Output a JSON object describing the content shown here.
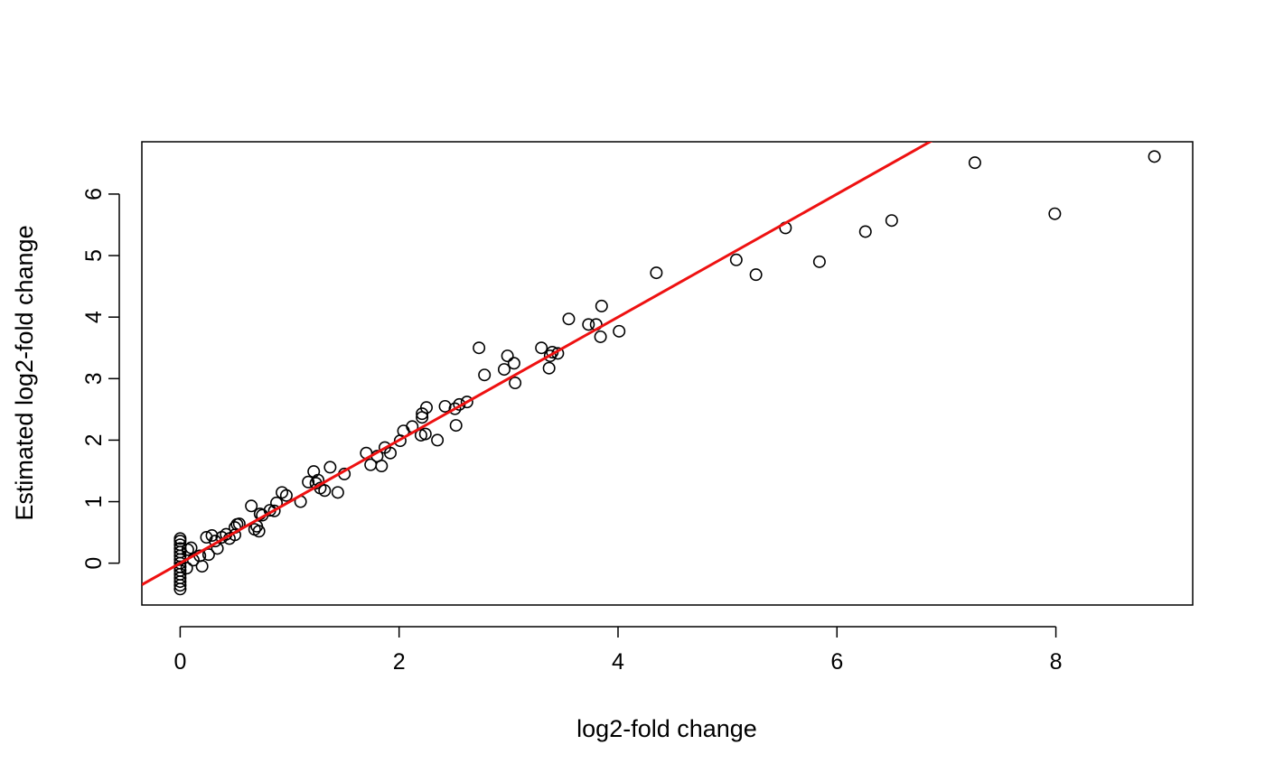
{
  "chart_data": {
    "type": "scatter",
    "title": "",
    "xlabel": "log2-fold change",
    "ylabel": "Estimated log2-fold change",
    "xlim": [
      -0.35,
      9.25
    ],
    "ylim": [
      -0.68,
      6.85
    ],
    "x_ticks": [
      0,
      2,
      4,
      6,
      8
    ],
    "y_ticks": [
      0,
      1,
      2,
      3,
      4,
      5,
      6
    ],
    "x_tick_labels": [
      "0",
      "2",
      "4",
      "6",
      "8"
    ],
    "y_tick_labels": [
      "0",
      "1",
      "2",
      "3",
      "4",
      "5",
      "6"
    ],
    "grid": false,
    "legend": "none",
    "colors": {
      "points": "#000000",
      "reference_line": "#ee1111"
    },
    "reference_line": {
      "type": "identity",
      "intercept": 0,
      "slope": 1
    },
    "points": [
      [
        0,
        -0.42
      ],
      [
        0,
        -0.36
      ],
      [
        0,
        -0.3
      ],
      [
        0,
        -0.24
      ],
      [
        0,
        -0.18
      ],
      [
        0,
        -0.12
      ],
      [
        0,
        -0.06
      ],
      [
        0,
        0.0
      ],
      [
        0,
        0.06
      ],
      [
        0,
        0.12
      ],
      [
        0,
        0.18
      ],
      [
        0,
        0.24
      ],
      [
        0,
        0.3
      ],
      [
        0,
        0.36
      ],
      [
        0,
        0.4
      ],
      [
        0.06,
        -0.08
      ],
      [
        0.07,
        0.22
      ],
      [
        0.1,
        0.25
      ],
      [
        0.12,
        0.05
      ],
      [
        0.18,
        0.12
      ],
      [
        0.2,
        -0.05
      ],
      [
        0.24,
        0.42
      ],
      [
        0.26,
        0.14
      ],
      [
        0.29,
        0.45
      ],
      [
        0.32,
        0.36
      ],
      [
        0.34,
        0.24
      ],
      [
        0.38,
        0.42
      ],
      [
        0.42,
        0.47
      ],
      [
        0.45,
        0.4
      ],
      [
        0.5,
        0.46
      ],
      [
        0.5,
        0.58
      ],
      [
        0.52,
        0.63
      ],
      [
        0.54,
        0.64
      ],
      [
        0.65,
        0.93
      ],
      [
        0.68,
        0.55
      ],
      [
        0.7,
        0.6
      ],
      [
        0.72,
        0.52
      ],
      [
        0.75,
        0.78
      ],
      [
        0.73,
        0.8
      ],
      [
        0.82,
        0.86
      ],
      [
        0.86,
        0.85
      ],
      [
        0.88,
        0.98
      ],
      [
        0.93,
        1.15
      ],
      [
        0.97,
        1.1
      ],
      [
        1.1,
        1.0
      ],
      [
        1.17,
        1.32
      ],
      [
        1.22,
        1.49
      ],
      [
        1.24,
        1.3
      ],
      [
        1.26,
        1.35
      ],
      [
        1.28,
        1.22
      ],
      [
        1.32,
        1.18
      ],
      [
        1.37,
        1.56
      ],
      [
        1.44,
        1.15
      ],
      [
        1.5,
        1.45
      ],
      [
        1.7,
        1.79
      ],
      [
        1.74,
        1.6
      ],
      [
        1.8,
        1.74
      ],
      [
        1.84,
        1.58
      ],
      [
        1.87,
        1.88
      ],
      [
        1.92,
        1.79
      ],
      [
        2.01,
        1.99
      ],
      [
        2.04,
        2.15
      ],
      [
        2.12,
        2.22
      ],
      [
        2.2,
        2.08
      ],
      [
        2.21,
        2.37
      ],
      [
        2.21,
        2.43
      ],
      [
        2.25,
        2.53
      ],
      [
        2.24,
        2.1
      ],
      [
        2.35,
        2.0
      ],
      [
        2.42,
        2.55
      ],
      [
        2.51,
        2.51
      ],
      [
        2.52,
        2.24
      ],
      [
        2.55,
        2.58
      ],
      [
        2.62,
        2.62
      ],
      [
        2.73,
        3.5
      ],
      [
        2.78,
        3.06
      ],
      [
        2.96,
        3.15
      ],
      [
        2.99,
        3.37
      ],
      [
        3.05,
        3.25
      ],
      [
        3.06,
        2.93
      ],
      [
        3.3,
        3.5
      ],
      [
        3.37,
        3.17
      ],
      [
        3.38,
        3.37
      ],
      [
        3.4,
        3.43
      ],
      [
        3.45,
        3.41
      ],
      [
        3.55,
        3.97
      ],
      [
        3.73,
        3.88
      ],
      [
        3.8,
        3.88
      ],
      [
        3.84,
        3.68
      ],
      [
        3.85,
        4.18
      ],
      [
        4.01,
        3.77
      ],
      [
        4.35,
        4.72
      ],
      [
        5.08,
        4.93
      ],
      [
        5.26,
        4.69
      ],
      [
        5.53,
        5.45
      ],
      [
        5.84,
        4.9
      ],
      [
        6.26,
        5.39
      ],
      [
        6.5,
        5.57
      ],
      [
        7.26,
        6.51
      ],
      [
        7.99,
        5.68
      ],
      [
        8.9,
        6.61
      ]
    ]
  }
}
